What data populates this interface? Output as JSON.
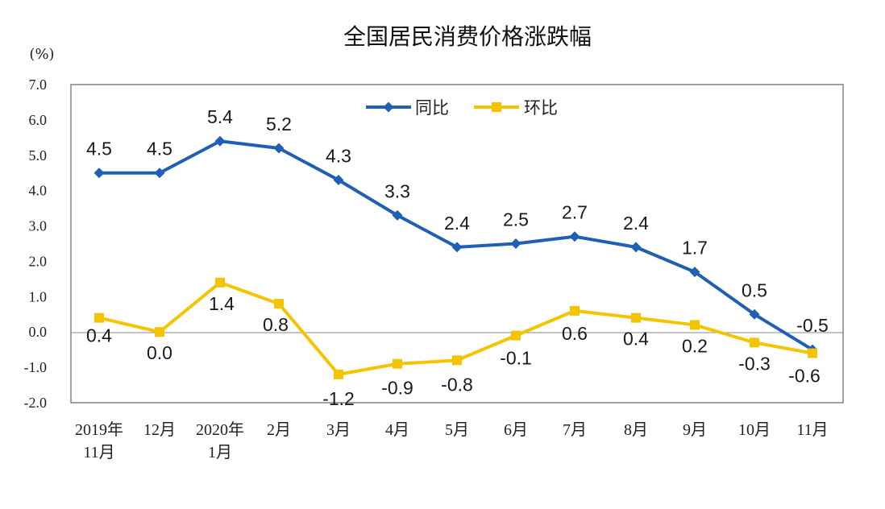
{
  "chart_data": {
    "type": "line",
    "title": "全国居民消费价格涨跌幅",
    "ylabel": "(%)",
    "ylim": [
      -2.0,
      7.0
    ],
    "yticks": [
      "7.0",
      "6.0",
      "5.0",
      "4.0",
      "3.0",
      "2.0",
      "1.0",
      "0.0",
      "-1.0",
      "-2.0"
    ],
    "categories": [
      [
        "2019年",
        "11月"
      ],
      [
        "12月"
      ],
      [
        "2020年",
        "1月"
      ],
      [
        "2月"
      ],
      [
        "3月"
      ],
      [
        "4月"
      ],
      [
        "5月"
      ],
      [
        "6月"
      ],
      [
        "7月"
      ],
      [
        "8月"
      ],
      [
        "9月"
      ],
      [
        "10月"
      ],
      [
        "11月"
      ]
    ],
    "series": [
      {
        "name": "同比",
        "color": "#1f5fb4",
        "marker": "diamond",
        "values": [
          4.5,
          4.5,
          5.4,
          5.2,
          4.3,
          3.3,
          2.4,
          2.5,
          2.7,
          2.4,
          1.7,
          0.5,
          -0.5
        ],
        "labels": [
          "4.5",
          "4.5",
          "5.4",
          "5.2",
          "4.3",
          "3.3",
          "2.4",
          "2.5",
          "2.7",
          "2.4",
          "1.7",
          "0.5",
          "-0.5"
        ]
      },
      {
        "name": "环比",
        "color": "#f5c400",
        "marker": "square",
        "values": [
          0.4,
          0.0,
          1.4,
          0.8,
          -1.2,
          -0.9,
          -0.8,
          -0.1,
          0.6,
          0.4,
          0.2,
          -0.3,
          -0.6
        ],
        "labels": [
          "0.4",
          "0.0",
          "1.4",
          "0.8",
          "-1.2",
          "-0.9",
          "-0.8",
          "-0.1",
          "0.6",
          "0.4",
          "0.2",
          "-0.3",
          "-0.6"
        ]
      }
    ],
    "legend": "top-center",
    "grid": false
  }
}
